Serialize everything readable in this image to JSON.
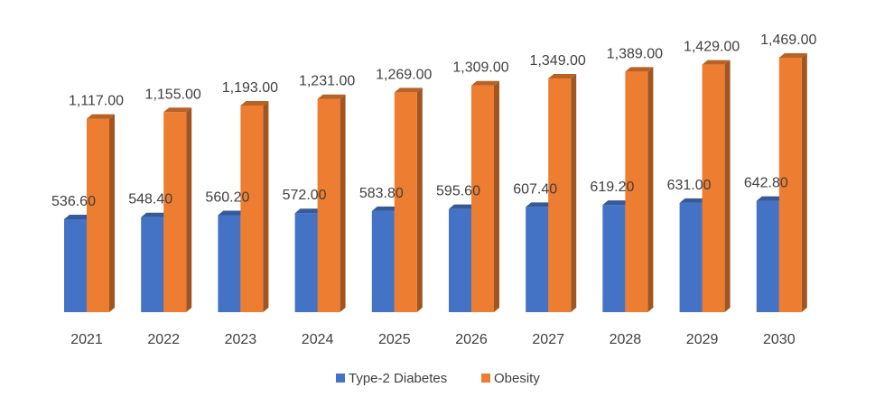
{
  "chart_data": {
    "type": "bar",
    "title": "",
    "xlabel": "",
    "ylabel": "",
    "grid": false,
    "legend_position": "bottom",
    "ylim": [
      0,
      1469
    ],
    "categories": [
      "2021",
      "2022",
      "2023",
      "2024",
      "2025",
      "2026",
      "2027",
      "2028",
      "2029",
      "2030"
    ],
    "series": [
      {
        "name": "Type-2 Diabetes",
        "color": "#4472C4",
        "values": [
          536.6,
          548.4,
          560.2,
          572.0,
          583.8,
          595.6,
          607.4,
          619.2,
          631.0,
          642.8
        ],
        "labels": [
          "536.60",
          "548.40",
          "560.20",
          "572.00",
          "583.80",
          "595.60",
          "607.40",
          "619.20",
          "631.00",
          "642.80"
        ]
      },
      {
        "name": "Obesity",
        "color": "#ED7D31",
        "values": [
          1117,
          1155,
          1193,
          1231,
          1269,
          1309,
          1349,
          1389,
          1429,
          1469
        ],
        "labels": [
          "1,117.00",
          "1,155.00",
          "1,193.00",
          "1,231.00",
          "1,269.00",
          "1,309.00",
          "1,349.00",
          "1,389.00",
          "1,429.00",
          "1,469.00"
        ]
      }
    ]
  }
}
